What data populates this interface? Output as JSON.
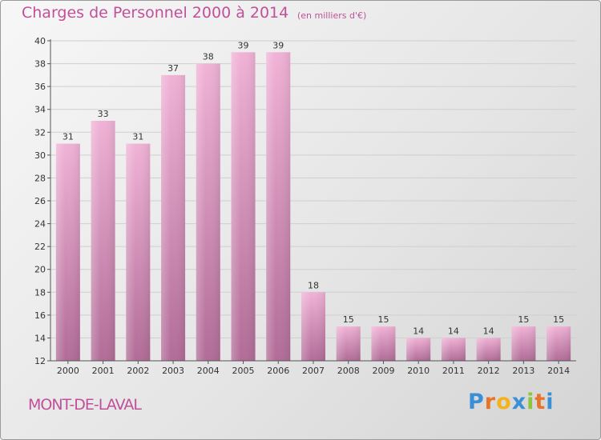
{
  "header": {
    "title": "Charges de Personnel 2000 à 2014",
    "subtitle": "(en milliers d'€)"
  },
  "footer": {
    "city": "MONT-DE-LAVAL",
    "logo_letters": [
      "P",
      "r",
      "o",
      "x",
      "i",
      "t",
      "i"
    ],
    "logo_colors": [
      "#3a8fd6",
      "#e8732a",
      "#f2b31c",
      "#3a8fd6",
      "#8cc63f",
      "#e8732a",
      "#3a8fd6"
    ]
  },
  "colors": {
    "accent": "#c0509a",
    "bar_light": "#f0b2d6",
    "bar_dark": "#b16c97"
  },
  "chart_data": {
    "type": "bar",
    "title": "Charges de Personnel 2000 à 2014",
    "subtitle": "(en milliers d'€)",
    "xlabel": "",
    "ylabel": "",
    "categories": [
      "2000",
      "2001",
      "2002",
      "2003",
      "2004",
      "2005",
      "2006",
      "2007",
      "2008",
      "2009",
      "2010",
      "2011",
      "2012",
      "2013",
      "2014"
    ],
    "values": [
      31,
      33,
      31,
      37,
      38,
      39,
      39,
      18,
      15,
      15,
      14,
      14,
      14,
      15,
      15
    ],
    "ylim": [
      12,
      40
    ],
    "yticks": [
      12,
      14,
      16,
      18,
      20,
      22,
      24,
      26,
      28,
      30,
      32,
      34,
      36,
      38,
      40
    ],
    "grid": true,
    "data_labels": true
  }
}
